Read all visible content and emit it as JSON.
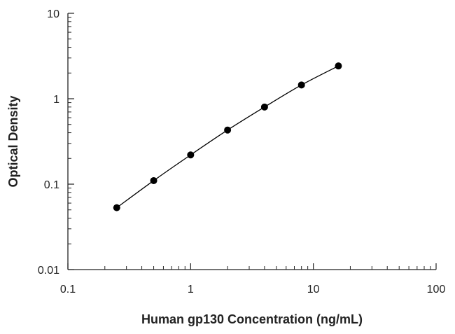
{
  "chart_data": {
    "type": "scatter",
    "title": "",
    "xlabel": "Human gp130 Concentration (ng/mL)",
    "ylabel": "Optical Density",
    "xscale": "log",
    "yscale": "log",
    "xlim": [
      0.1,
      100
    ],
    "ylim": [
      0.01,
      10
    ],
    "x_ticks": [
      "0.1",
      "1",
      "10",
      "100"
    ],
    "y_ticks": [
      "0.01",
      "0.1",
      "1",
      "10"
    ],
    "grid": false,
    "legend": "none",
    "fit_line": true,
    "colors": {
      "points": "#000000",
      "line": "#000000",
      "axis": "#222222"
    },
    "series": [
      {
        "x": [
          0.25,
          0.5,
          1,
          2,
          4,
          8,
          16
        ],
        "y": [
          0.053,
          0.11,
          0.22,
          0.43,
          0.8,
          1.45,
          2.42
        ]
      }
    ]
  }
}
